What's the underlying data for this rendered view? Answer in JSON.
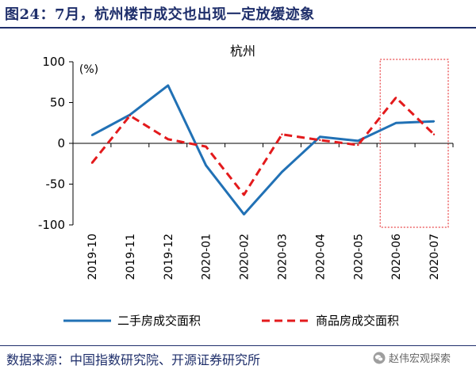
{
  "figure": {
    "title": "图24：7月，杭州楼市成交也出现一定放缓迹象",
    "source": "数据来源：中国指数研究院、开源证券研究所",
    "watermark": "赵伟宏观探索",
    "watermark_icon": "wechat-icon"
  },
  "colors": {
    "title": "#1f2f6b",
    "series1": "#2171b5",
    "series2": "#e31a1c",
    "highlight_box": "#e31a1c",
    "axis": "#000000"
  },
  "chart_data": {
    "type": "line",
    "title": "杭州",
    "ylabel": "(%)",
    "xlabel": "",
    "categories": [
      "2019-10",
      "2019-11",
      "2019-12",
      "2020-01",
      "2020-02",
      "2020-03",
      "2020-04",
      "2020-05",
      "2020-06",
      "2020-07"
    ],
    "ylim": [
      -100,
      100
    ],
    "yticks": [
      100,
      50,
      0,
      -50,
      -100
    ],
    "grid": false,
    "legend_position": "bottom",
    "highlight_categories": [
      "2020-06",
      "2020-07"
    ],
    "series": [
      {
        "name": "二手房成交面积",
        "style": "solid",
        "values": [
          10,
          35,
          71,
          -27,
          -87,
          -35,
          8,
          3,
          25,
          27
        ]
      },
      {
        "name": "商品房成交面积",
        "style": "dashed",
        "values": [
          -24,
          34,
          5,
          -4,
          -63,
          11,
          4,
          -2,
          56,
          11
        ]
      }
    ]
  }
}
